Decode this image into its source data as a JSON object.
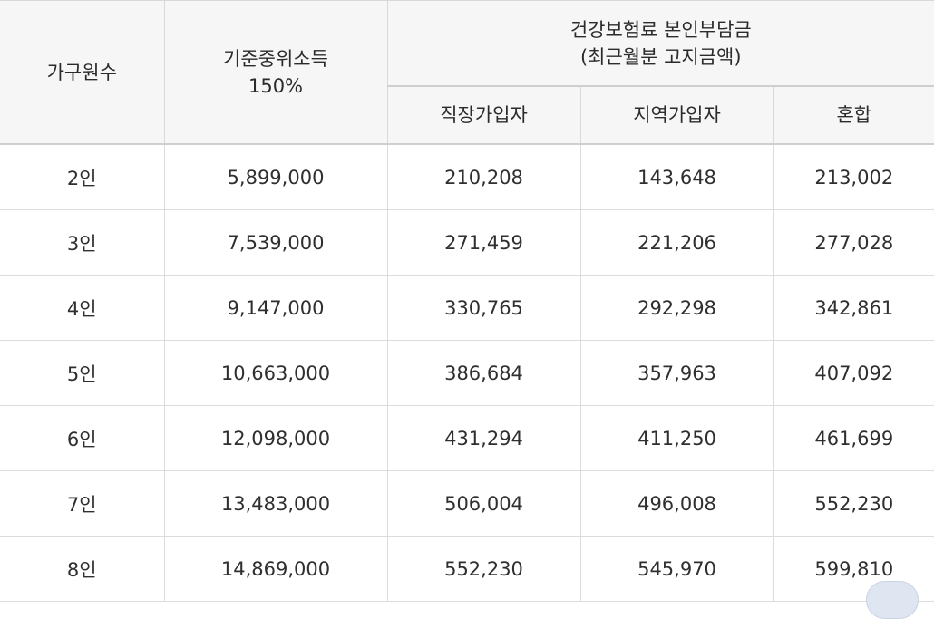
{
  "header": {
    "household": "가구원수",
    "median_income_line1": "기준중위소득",
    "median_income_line2": "150%",
    "premium_line1": "건강보험료 본인부담금",
    "premium_line2": "(최근월분 고지금액)",
    "employee": "직장가입자",
    "regional": "지역가입자",
    "mixed": "혼합"
  },
  "rows": [
    {
      "household": "2인",
      "income": "5,899,000",
      "employee": "210,208",
      "regional": "143,648",
      "mixed": "213,002"
    },
    {
      "household": "3인",
      "income": "7,539,000",
      "employee": "271,459",
      "regional": "221,206",
      "mixed": "277,028"
    },
    {
      "household": "4인",
      "income": "9,147,000",
      "employee": "330,765",
      "regional": "292,298",
      "mixed": "342,861"
    },
    {
      "household": "5인",
      "income": "10,663,000",
      "employee": "386,684",
      "regional": "357,963",
      "mixed": "407,092"
    },
    {
      "household": "6인",
      "income": "12,098,000",
      "employee": "431,294",
      "regional": "411,250",
      "mixed": "461,699"
    },
    {
      "household": "7인",
      "income": "13,483,000",
      "employee": "506,004",
      "regional": "496,008",
      "mixed": "552,230"
    },
    {
      "household": "8인",
      "income": "14,869,000",
      "employee": "552,230",
      "regional": "545,970",
      "mixed": "599,810"
    }
  ]
}
